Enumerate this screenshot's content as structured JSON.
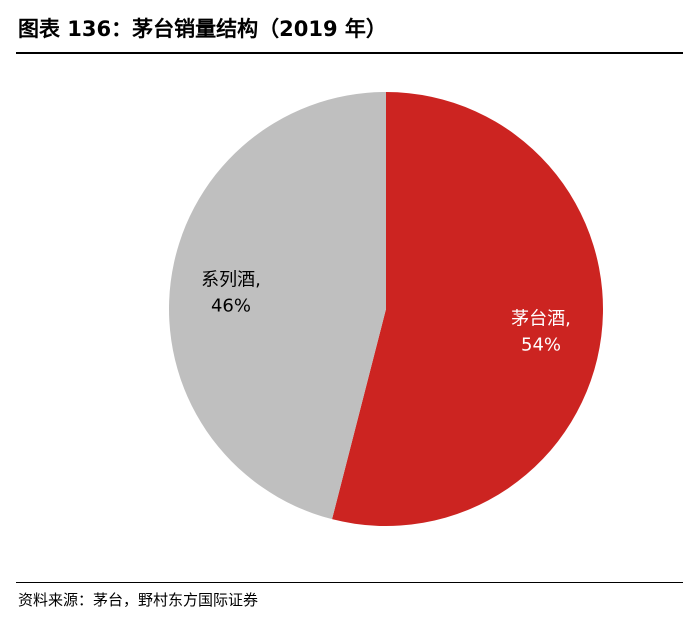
{
  "header": {
    "title": "图表 136：茅台销量结构（2019 年）"
  },
  "chart_data": {
    "type": "pie",
    "title": "图表 136：茅台销量结构（2019 年）",
    "slices": [
      {
        "name": "茅台酒",
        "value": 54,
        "value_label": "54%",
        "color": "#cc2421",
        "label_color": "#ffffff"
      },
      {
        "name": "系列酒",
        "value": 46,
        "value_label": "46%",
        "color": "#bfbfbf",
        "label_color": "#000000"
      }
    ],
    "start_angle": "12 o'clock",
    "direction": "clockwise",
    "legend": "none",
    "slice_labels": "inside, category and percent"
  },
  "footer": {
    "source": "资料来源：茅台，野村东方国际证券"
  }
}
